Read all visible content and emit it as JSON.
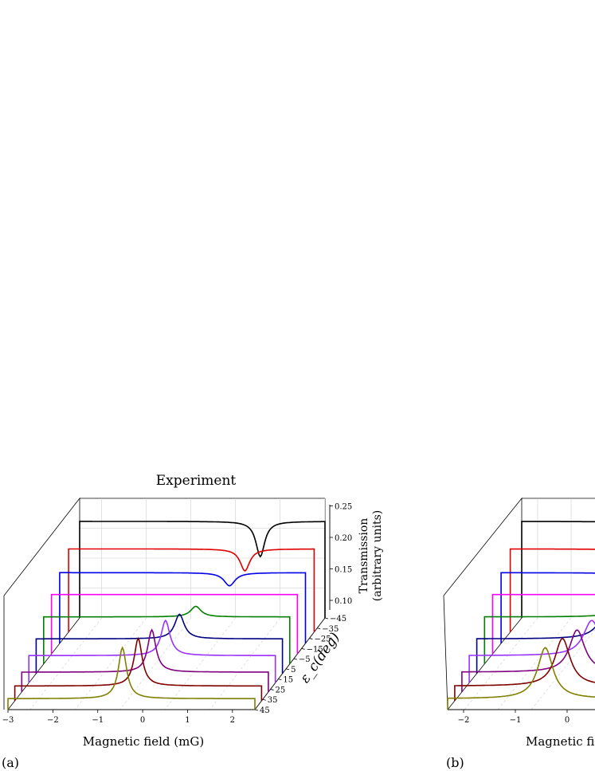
{
  "chart_data": [
    {
      "panel_label": "(a)",
      "title": "Experiment",
      "type": "line",
      "xlabel": "Magnetic field (mG)",
      "ylabel": "ε_c(deg)",
      "zlabel_line1": "Transmission",
      "zlabel_line2": "(arbitrary units)",
      "x_ticks": [
        "−3",
        "−2",
        "−1",
        "0",
        "1",
        "2"
      ],
      "y_ticks": [
        "−45",
        "−35",
        "−25",
        "−15",
        "−5",
        "5",
        "15",
        "25",
        "35",
        "45"
      ],
      "z_ticks": [
        "0.10",
        "0.15",
        "0.20",
        "0.25"
      ],
      "xlim": [
        -3.0,
        2.5
      ],
      "zlim": [
        0.08,
        0.26
      ],
      "series": [
        {
          "eps": -45,
          "color": "#000000",
          "baseline": 0.255,
          "amp": -0.04,
          "center": 1.05,
          "width": 0.12
        },
        {
          "eps": -35,
          "color": "#e00000",
          "baseline": 0.228,
          "amp": -0.025,
          "center": 0.95,
          "width": 0.13
        },
        {
          "eps": -25,
          "color": "#0000e6",
          "baseline": 0.203,
          "amp": -0.015,
          "center": 0.8,
          "width": 0.15
        },
        {
          "eps": -15,
          "color": "#ff00ff",
          "baseline": 0.18,
          "amp": 0.0,
          "center": 0.6,
          "width": 0.15
        },
        {
          "eps": -5,
          "color": "#008000",
          "baseline": 0.155,
          "amp": 0.012,
          "center": 0.4,
          "width": 0.14
        },
        {
          "eps": 5,
          "color": "#000080",
          "baseline": 0.13,
          "amp": 0.028,
          "center": 0.2,
          "width": 0.13
        },
        {
          "eps": 15,
          "color": "#9a32ff",
          "baseline": 0.115,
          "amp": 0.04,
          "center": 0.05,
          "width": 0.12
        },
        {
          "eps": 25,
          "color": "#800080",
          "baseline": 0.1,
          "amp": 0.048,
          "center": -0.1,
          "width": 0.11
        },
        {
          "eps": 35,
          "color": "#800000",
          "baseline": 0.09,
          "amp": 0.054,
          "center": -0.25,
          "width": 0.11
        },
        {
          "eps": 45,
          "color": "#808000",
          "baseline": 0.082,
          "amp": 0.058,
          "center": -0.45,
          "width": 0.11
        }
      ]
    },
    {
      "panel_label": "(b)",
      "title": "",
      "type": "line",
      "xlabel": "Magnetic fie",
      "x_ticks": [
        "−2",
        "−1",
        "0"
      ],
      "xlim": [
        -2.3,
        2.5
      ],
      "series": [
        {
          "color": "#000000",
          "baseline": 0.255,
          "amp": -0.04,
          "center": 1.05,
          "width": 0.12
        },
        {
          "color": "#e00000",
          "baseline": 0.228,
          "amp": -0.025,
          "center": 0.95,
          "width": 0.13
        },
        {
          "color": "#0000e6",
          "baseline": 0.203,
          "amp": -0.015,
          "center": 0.8,
          "width": 0.15
        },
        {
          "color": "#ff00ff",
          "baseline": 0.18,
          "amp": 0.0,
          "center": 0.6,
          "width": 0.15
        },
        {
          "color": "#008000",
          "baseline": 0.155,
          "amp": 0.012,
          "center": 0.4,
          "width": 0.14
        },
        {
          "color": "#000080",
          "baseline": 0.13,
          "amp": 0.028,
          "center": 0.2,
          "width": 0.13
        },
        {
          "color": "#9a32ff",
          "baseline": 0.115,
          "amp": 0.04,
          "center": 0.05,
          "width": 0.12
        },
        {
          "color": "#800080",
          "baseline": 0.1,
          "amp": 0.048,
          "center": -0.1,
          "width": 0.11
        },
        {
          "color": "#800000",
          "baseline": 0.09,
          "amp": 0.054,
          "center": -0.25,
          "width": 0.11
        },
        {
          "color": "#808000",
          "baseline": 0.082,
          "amp": 0.058,
          "center": -0.45,
          "width": 0.11
        }
      ]
    }
  ]
}
